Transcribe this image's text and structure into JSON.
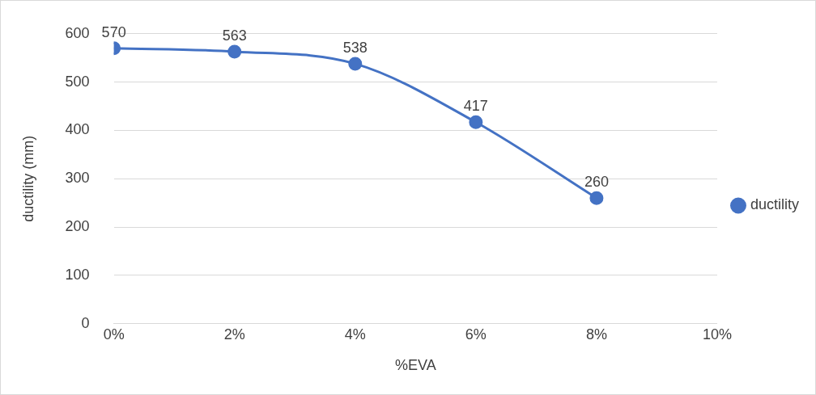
{
  "chart_data": {
    "type": "line",
    "xlabel": "%EVA",
    "ylabel": "ductility (mm)",
    "x": [
      0,
      2,
      4,
      6,
      8
    ],
    "series": [
      {
        "name": "ductility",
        "color": "#4472c4",
        "values": [
          570,
          563,
          538,
          417,
          260
        ]
      }
    ],
    "xlim": [
      0,
      10
    ],
    "xticks": [
      {
        "value": 0,
        "label": "0%"
      },
      {
        "value": 2,
        "label": "2%"
      },
      {
        "value": 4,
        "label": "4%"
      },
      {
        "value": 6,
        "label": "6%"
      },
      {
        "value": 8,
        "label": "8%"
      },
      {
        "value": 10,
        "label": "10%"
      }
    ],
    "ylim": [
      0,
      600
    ],
    "yticks": [
      0,
      100,
      200,
      300,
      400,
      500,
      600
    ],
    "grid": "y",
    "legend": "right",
    "marker": "circle",
    "line_style": "solid",
    "data_labels": true
  }
}
